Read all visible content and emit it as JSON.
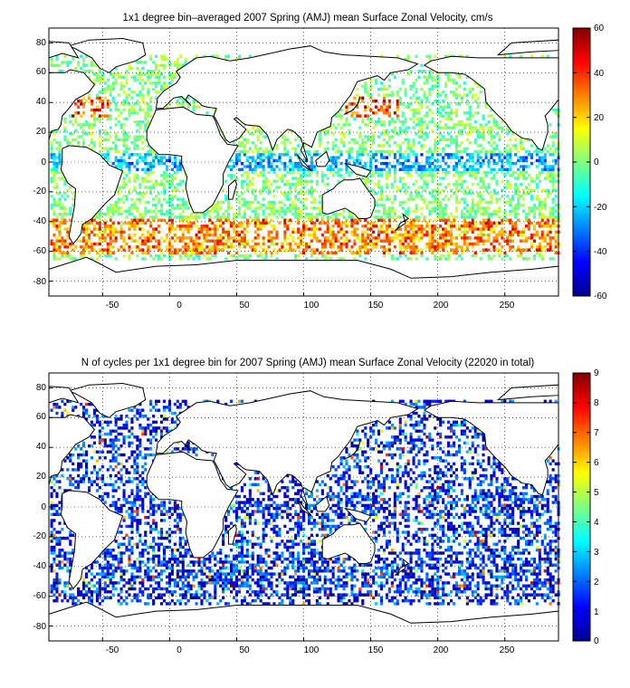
{
  "panels": [
    {
      "title": "1x1 degree bin–averaged 2007 Spring (AMJ) mean Surface Zonal Velocity, cm/s",
      "x_ticks": [
        "-50",
        "0",
        "50",
        "100",
        "150",
        "200",
        "250"
      ],
      "y_ticks": [
        "80",
        "60",
        "40",
        "20",
        "0",
        "-20",
        "-40",
        "-60",
        "-80"
      ],
      "colorbar_ticks": [
        "60",
        "40",
        "20",
        "0",
        "-20",
        "-40",
        "-60"
      ],
      "colormap": "jet",
      "clim": [
        -60,
        60
      ]
    },
    {
      "title": "N of cycles per 1x1 degree bin for 2007 Spring (AMJ) mean Surface Zonal Velocity (22020 in total)",
      "x_ticks": [
        "-50",
        "0",
        "50",
        "100",
        "150",
        "200",
        "250"
      ],
      "y_ticks": [
        "80",
        "60",
        "40",
        "20",
        "0",
        "-20",
        "-40",
        "-60",
        "-80"
      ],
      "colorbar_ticks": [
        "9",
        "8",
        "7",
        "6",
        "5",
        "4",
        "3",
        "2",
        "1",
        "0"
      ],
      "colormap": "jet",
      "clim": [
        0,
        9
      ]
    }
  ],
  "chart_data": [
    {
      "type": "heatmap",
      "title": "1x1 degree bin–averaged 2007 Spring (AMJ) mean Surface Zonal Velocity, cm/s",
      "xlim": [
        -90,
        290
      ],
      "ylim": [
        -90,
        90
      ],
      "clim": [
        -60,
        60
      ],
      "colormap": "jet",
      "grid": true
    },
    {
      "type": "heatmap",
      "title": "N of cycles per 1x1 degree bin for 2007 Spring (AMJ) mean Surface Zonal Velocity (22020 in total)",
      "xlim": [
        -90,
        290
      ],
      "ylim": [
        -90,
        90
      ],
      "clim": [
        0,
        9
      ],
      "colormap": "jet",
      "grid": true
    }
  ]
}
